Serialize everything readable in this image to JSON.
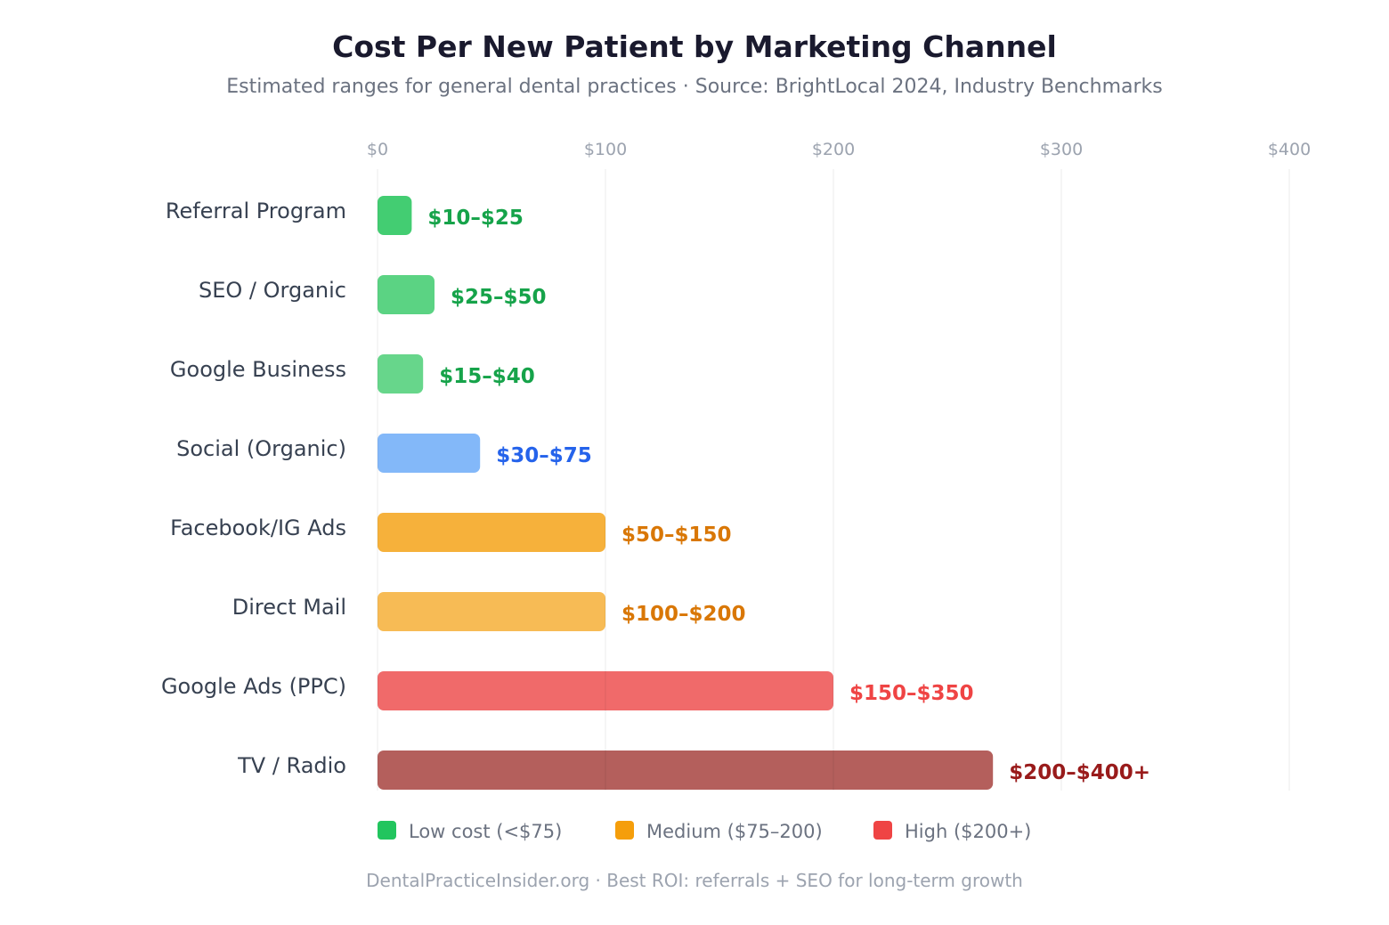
{
  "chart_data": {
    "type": "bar",
    "orientation": "horizontal",
    "title": "Cost Per New Patient by Marketing Channel",
    "subtitle": "Estimated ranges for general dental practices · Source: BrightLocal 2024, Industry Benchmarks",
    "xlim": [
      0,
      400
    ],
    "xticks": [
      "$0",
      "$100",
      "$200",
      "$300",
      "$400"
    ],
    "grid": true,
    "categories": [
      "Referral Program",
      "SEO / Organic",
      "Google Business",
      "Social (Organic)",
      "Facebook/IG Ads",
      "Direct Mail",
      "Google Ads (PPC)",
      "TV / Radio"
    ],
    "values": [
      15,
      25,
      20,
      45,
      100,
      100,
      200,
      270
    ],
    "labels": [
      "$10–$25",
      "$25–$50",
      "$15–$40",
      "$30–$75",
      "$50–$150",
      "$100–$200",
      "$150–$350",
      "$200–$400+"
    ],
    "bar_colors": [
      "#43cd72",
      "#5bd383",
      "#67d68b",
      "#83b8f9",
      "#f6b13b",
      "#f7bb55",
      "#f06a6a",
      "#b45f5c"
    ],
    "label_colors": [
      "#16a34a",
      "#16a34a",
      "#16a34a",
      "#2563eb",
      "#d97706",
      "#d97706",
      "#ef4444",
      "#991b1b"
    ],
    "legend": {
      "placement": "bottom",
      "items": [
        {
          "label": "Low cost (<$75)",
          "color": "#22c55e"
        },
        {
          "label": "Medium ($75–200)",
          "color": "#f59e0b"
        },
        {
          "label": "High ($200+)",
          "color": "#ef4444"
        }
      ]
    },
    "footer": "DentalPracticeInsider.org · Best ROI: referrals + SEO for long-term growth"
  }
}
